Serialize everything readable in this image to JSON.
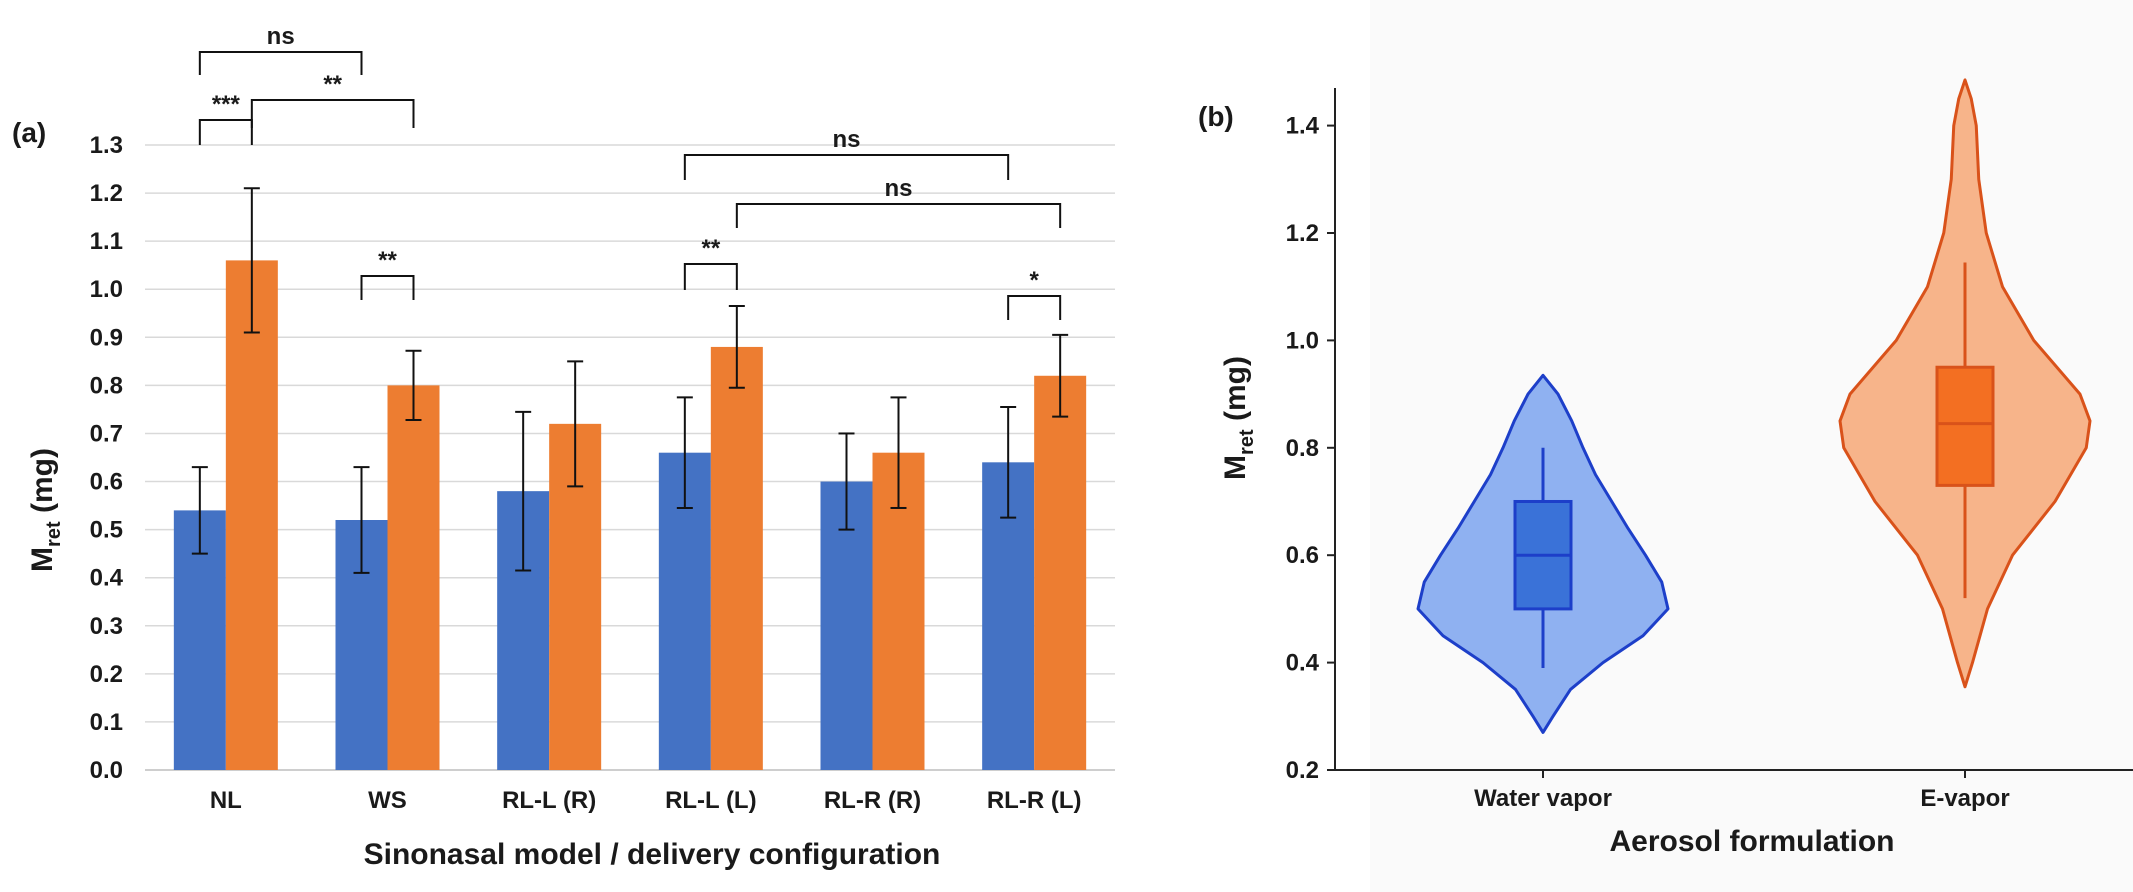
{
  "chart_data": [
    {
      "type": "bar",
      "panel_label": "(a)",
      "xlabel": "Sinonasal model / delivery configuration",
      "ylabel": "M",
      "ylabel_sub": "ret",
      "ylabel_unit": " (mg)",
      "ylim": [
        0,
        1.3
      ],
      "yticks": [
        "0.0",
        "0.1",
        "0.2",
        "0.3",
        "0.4",
        "0.5",
        "0.6",
        "0.7",
        "0.8",
        "0.9",
        "1.0",
        "1.1",
        "1.2",
        "1.3"
      ],
      "grid": true,
      "categories": [
        "NL",
        "WS",
        "RL-L (R)",
        "RL-L (L)",
        "RL-R (R)",
        "RL-R (L)"
      ],
      "series": [
        {
          "color": "#4472c4",
          "values": [
            0.54,
            0.52,
            0.58,
            0.66,
            0.6,
            0.64
          ],
          "errors": [
            0.09,
            0.11,
            0.165,
            0.115,
            0.1,
            0.115
          ]
        },
        {
          "color": "#ed7d31",
          "values": [
            1.06,
            0.8,
            0.72,
            0.88,
            0.66,
            0.82
          ],
          "errors": [
            0.15,
            0.072,
            0.13,
            0.085,
            0.115,
            0.085
          ]
        }
      ],
      "annotations": [
        {
          "label": "***",
          "from": [
            0,
            0
          ],
          "to": [
            0,
            1
          ]
        },
        {
          "label": "ns",
          "from": [
            0,
            0
          ],
          "to": [
            1,
            0
          ]
        },
        {
          "label": "**",
          "from": [
            0,
            1
          ],
          "to": [
            1,
            1
          ]
        },
        {
          "label": "**",
          "from": [
            1,
            0
          ],
          "to": [
            1,
            1
          ]
        },
        {
          "label": "ns",
          "from": [
            3,
            0
          ],
          "to": [
            5,
            0
          ]
        },
        {
          "label": "ns",
          "from": [
            3,
            1
          ],
          "to": [
            5,
            1
          ]
        },
        {
          "label": "**",
          "from": [
            3,
            0
          ],
          "to": [
            3,
            1
          ]
        },
        {
          "label": "*",
          "from": [
            5,
            0
          ],
          "to": [
            5,
            1
          ]
        }
      ]
    },
    {
      "type": "violin",
      "panel_label": "(b)",
      "xlabel": "Aerosol formulation",
      "ylabel": "M",
      "ylabel_sub": "ret",
      "ylabel_unit": " (mg)",
      "ylim": [
        0.2,
        1.47
      ],
      "yticks": [
        "0.2",
        "0.4",
        "0.6",
        "0.8",
        "1.0",
        "1.2",
        "1.4"
      ],
      "categories": [
        "Water vapor",
        "E-vapor"
      ],
      "groups": [
        {
          "name": "Water vapor",
          "fill": "#8fb1f1",
          "stroke": "#1d3fc9",
          "box_fill": "#3a72d8",
          "min": 0.27,
          "max": 0.935,
          "whisker_low": 0.39,
          "q1": 0.5,
          "median": 0.6,
          "q3": 0.7,
          "whisker_high": 0.8,
          "density": [
            [
              0.27,
              0.0
            ],
            [
              0.3,
              0.08
            ],
            [
              0.35,
              0.22
            ],
            [
              0.4,
              0.48
            ],
            [
              0.45,
              0.8
            ],
            [
              0.5,
              1.0
            ],
            [
              0.55,
              0.95
            ],
            [
              0.6,
              0.82
            ],
            [
              0.65,
              0.68
            ],
            [
              0.7,
              0.55
            ],
            [
              0.75,
              0.42
            ],
            [
              0.8,
              0.32
            ],
            [
              0.85,
              0.23
            ],
            [
              0.9,
              0.12
            ],
            [
              0.935,
              0.0
            ]
          ]
        },
        {
          "name": "E-vapor",
          "fill": "#f7b48a",
          "stroke": "#d9521a",
          "box_fill": "#f36f22",
          "min": 0.355,
          "max": 1.485,
          "whisker_low": 0.52,
          "q1": 0.73,
          "median": 0.845,
          "q3": 0.95,
          "whisker_high": 1.145,
          "density": [
            [
              0.355,
              0.0
            ],
            [
              0.4,
              0.06
            ],
            [
              0.5,
              0.18
            ],
            [
              0.6,
              0.38
            ],
            [
              0.7,
              0.72
            ],
            [
              0.8,
              0.97
            ],
            [
              0.85,
              1.0
            ],
            [
              0.9,
              0.92
            ],
            [
              1.0,
              0.55
            ],
            [
              1.1,
              0.3
            ],
            [
              1.2,
              0.17
            ],
            [
              1.3,
              0.11
            ],
            [
              1.35,
              0.1
            ],
            [
              1.4,
              0.09
            ],
            [
              1.45,
              0.05
            ],
            [
              1.485,
              0.0
            ]
          ]
        }
      ]
    }
  ]
}
